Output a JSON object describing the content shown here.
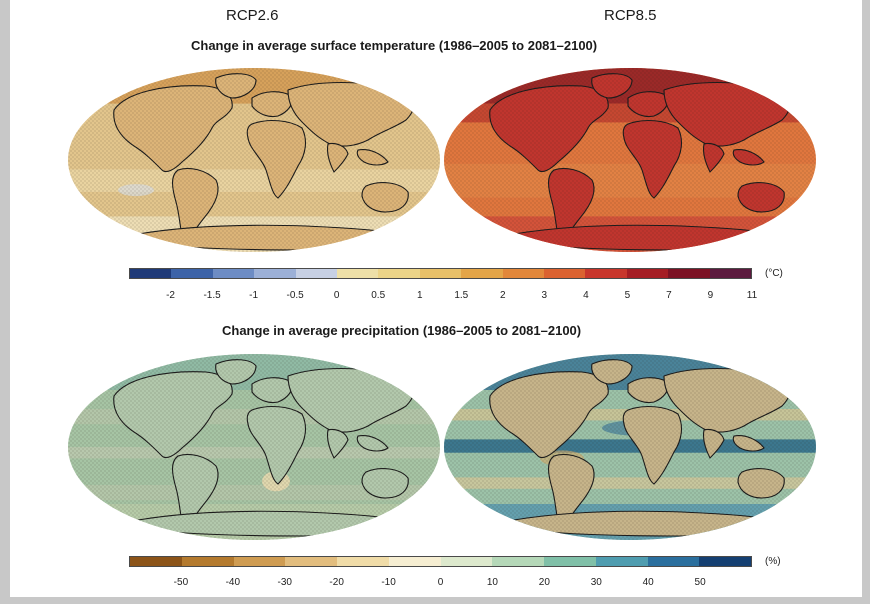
{
  "headers": {
    "left": "RCP2.6",
    "right": "RCP8.5"
  },
  "temperature": {
    "title": "Change in average surface temperature (1986–2005 to 2081–2100)",
    "unit": "(°C)",
    "ticks": [
      "-2",
      "-1.5",
      "-1",
      "-0.5",
      "0",
      "0.5",
      "1",
      "1.5",
      "2",
      "3",
      "4",
      "5",
      "7",
      "9",
      "11"
    ],
    "colors": [
      "#1f3a78",
      "#3d63a8",
      "#6d8cc4",
      "#9cb0d7",
      "#c7d0e4",
      "#eee0a8",
      "#ecd488",
      "#e8c068",
      "#e4a548",
      "#e2873a",
      "#db6230",
      "#c8362c",
      "#a51d24",
      "#7c1224",
      "#5c1a3e"
    ]
  },
  "precipitation": {
    "title": "Change in average precipitation (1986–2005 to 2081–2100)",
    "unit": "(%)",
    "ticks": [
      "-50",
      "-40",
      "-30",
      "-20",
      "-10",
      "0",
      "10",
      "20",
      "30",
      "40",
      "50"
    ],
    "colors": [
      "#8c5418",
      "#b47a2e",
      "#cf9c52",
      "#e2bd7e",
      "#f0dca8",
      "#f6eed2",
      "#dde9cd",
      "#b5d8b8",
      "#80c0a8",
      "#4f9db0",
      "#2a6f9e",
      "#143f72"
    ]
  },
  "maps": {
    "rcp26_temperature": {
      "ocean": "#e2c58c",
      "land": "#dcb478",
      "polar": "#d49a52",
      "south": "#eedfb8"
    },
    "rcp85_temperature": {
      "ocean": "#e0763e",
      "land": "#c0352e",
      "polar": "#8e1c24",
      "south": "#d2503a"
    },
    "rcp26_precipitation": {
      "ocean": "#a6c4a4",
      "land": "#b2c8ac",
      "polar": "#8cb8a4",
      "south": "#b8cca8"
    },
    "rcp85_precipitation": {
      "ocean": "#9cc2a8",
      "land": "#c6b48a",
      "polar": "#3c7896",
      "south": "#5e9cae"
    }
  }
}
